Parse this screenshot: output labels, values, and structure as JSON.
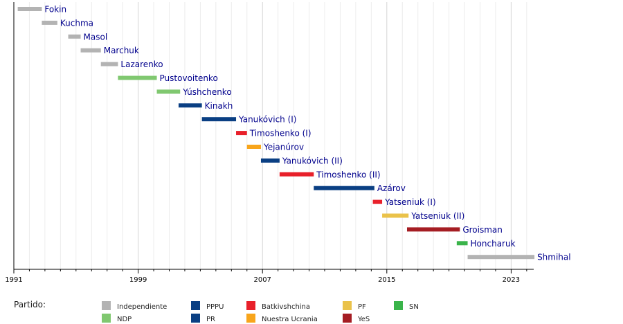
{
  "chart_data": {
    "type": "bar",
    "orientation": "horizontal-timeline",
    "xlim": [
      1991,
      2024.8
    ],
    "x_ticks": [
      "1991",
      "1999",
      "2007",
      "2015",
      "2023"
    ],
    "grid": true,
    "bars": [
      {
        "label": "Fokin",
        "start": 1991.25,
        "end": 1992.8,
        "party": "Independiente"
      },
      {
        "label": "Kuchma",
        "start": 1992.8,
        "end": 1993.8,
        "party": "Independiente"
      },
      {
        "label": "Masol",
        "start": 1994.5,
        "end": 1995.3,
        "party": "Independiente"
      },
      {
        "label": "Marchuk",
        "start": 1995.3,
        "end": 1996.6,
        "party": "Independiente"
      },
      {
        "label": "Lazarenko",
        "start": 1996.6,
        "end": 1997.7,
        "party": "Independiente"
      },
      {
        "label": "Pustovoitenko",
        "start": 1997.7,
        "end": 2000.2,
        "party": "NDP"
      },
      {
        "label": "Yúshchenko",
        "start": 2000.2,
        "end": 2001.7,
        "party": "NDP"
      },
      {
        "label": "Kinakh",
        "start": 2001.6,
        "end": 2003.1,
        "party": "PPPU"
      },
      {
        "label": "Yanukóvich (I)",
        "start": 2003.1,
        "end": 2005.3,
        "party": "PR"
      },
      {
        "label": "Timoshenko (I)",
        "start": 2005.3,
        "end": 2006.0,
        "party": "Batkivshchina"
      },
      {
        "label": "Yejanúrov",
        "start": 2006.0,
        "end": 2006.9,
        "party": "Nuestra Ucrania"
      },
      {
        "label": "Yanukóvich (II)",
        "start": 2006.9,
        "end": 2008.1,
        "party": "PR"
      },
      {
        "label": "Timoshenko (II)",
        "start": 2008.1,
        "end": 2010.3,
        "party": "Batkivshchina"
      },
      {
        "label": "Azárov",
        "start": 2010.3,
        "end": 2014.2,
        "party": "PR"
      },
      {
        "label": "Yatseniuk (I)",
        "start": 2014.1,
        "end": 2014.7,
        "party": "Batkivshchina"
      },
      {
        "label": "Yatseniuk (II)",
        "start": 2014.7,
        "end": 2016.4,
        "party": "PF"
      },
      {
        "label": "Groisman",
        "start": 2016.3,
        "end": 2019.7,
        "party": "YeS"
      },
      {
        "label": "Honcharuk",
        "start": 2019.5,
        "end": 2020.2,
        "party": "SN"
      },
      {
        "label": "Shmihal",
        "start": 2020.2,
        "end": 2024.5,
        "party": "Independiente"
      }
    ],
    "legend_title": "Partido:",
    "legend": [
      {
        "name": "Independiente",
        "color": "#b3b3b3"
      },
      {
        "name": "NDP",
        "color": "#80c870"
      },
      {
        "name": "PPPU",
        "color": "#0a3f83"
      },
      {
        "name": "PR",
        "color": "#0a3f83"
      },
      {
        "name": "Batkivshchina",
        "color": "#e8202a"
      },
      {
        "name": "Nuestra Ucrania",
        "color": "#f8a51b"
      },
      {
        "name": "PF",
        "color": "#eac24a"
      },
      {
        "name": "YeS",
        "color": "#a51d23"
      },
      {
        "name": "SN",
        "color": "#3ab44a"
      }
    ],
    "label_color": "#00008c"
  }
}
